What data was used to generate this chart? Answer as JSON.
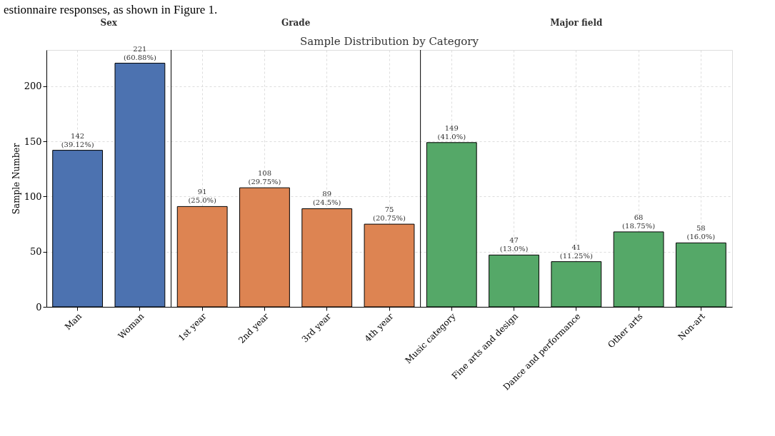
{
  "chart_data": {
    "type": "bar",
    "title": "Sample Distribution by Category",
    "ylabel": "Sample Number",
    "categories": [
      "Man",
      "Woman",
      "1st year",
      "2nd year",
      "3rd year",
      "4th year",
      "Music category",
      "Fine arts and design",
      "Dance and performance",
      "Other arts",
      "Non-art"
    ],
    "values": [
      142,
      221,
      91,
      108,
      89,
      75,
      149,
      47,
      41,
      68,
      58
    ],
    "colors": [
      "#4c72b0",
      "#4c72b0",
      "#dd8452",
      "#dd8452",
      "#dd8452",
      "#dd8452",
      "#55a868",
      "#55a868",
      "#55a868",
      "#55a868",
      "#55a868"
    ],
    "value_labels": [
      "142\n(39.12%)",
      "221\n(60.88%)",
      "91\n(25.0%)",
      "108\n(29.75%)",
      "89\n(24.5%)",
      "75\n(20.75%)",
      "149\n(41.0%)",
      "47\n(13.0%)",
      "41\n(11.25%)",
      "68\n(18.75%)",
      "58\n(16.0%)"
    ],
    "ylim": [
      0,
      233
    ],
    "yticks": [
      0,
      50,
      100,
      150,
      200
    ],
    "grid": true,
    "ref_lines": [
      {
        "axis": "x",
        "value": "1st year",
        "color": "#000000"
      },
      {
        "axis": "x",
        "value": "Music category",
        "color": "#000000"
      }
    ],
    "annotations": [
      "estionnaire responses, as shown in Figure 1.",
      "Sex",
      "Grade",
      "Major field"
    ]
  }
}
